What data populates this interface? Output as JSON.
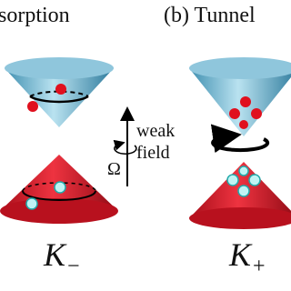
{
  "left": {
    "heading": "sorption",
    "field_words": [
      "weak",
      "field"
    ],
    "rotation": "Ω",
    "valley": {
      "symbol": "K",
      "subscript": "−"
    }
  },
  "right": {
    "heading": "(b) Tunnel",
    "valley": {
      "symbol": "K",
      "subscript": "+"
    }
  }
}
